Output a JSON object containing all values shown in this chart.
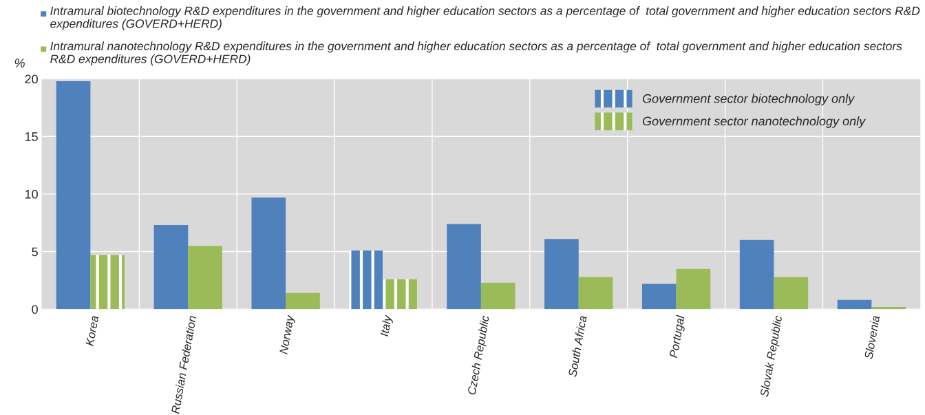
{
  "chart_data": {
    "type": "bar",
    "ylabel": "%",
    "categories": [
      "Korea",
      "Russian Federation",
      "Norway",
      "Italy",
      "Czech Republic",
      "South Africa",
      "Portugal",
      "Slovak Republic",
      "Slovenia"
    ],
    "series": [
      {
        "name": "Intramural biotechnology R&D expenditures in the government and higher education sectors as a percentage of  total government and higher education sectors R&D expenditures (GOVERD+HERD)",
        "color": "#4f81bd",
        "values": [
          19.8,
          7.3,
          9.7,
          null,
          7.4,
          6.1,
          2.2,
          6.0,
          0.8
        ]
      },
      {
        "name": "Intramural nanotechnology R&D expenditures in the government and higher education sectors as a percentage of  total government and higher education sectors R&D expenditures (GOVERD+HERD)",
        "color": "#9bbb59",
        "values": [
          null,
          5.5,
          1.4,
          null,
          2.3,
          2.8,
          3.5,
          2.8,
          0.2
        ]
      },
      {
        "name": "Government sector biotechnology only",
        "color": "#4f81bd",
        "values": [
          null,
          null,
          null,
          5.1,
          null,
          null,
          null,
          null,
          null
        ]
      },
      {
        "name": "Government sector nanotechnology only",
        "color": "#9bbb59",
        "values": [
          4.7,
          null,
          null,
          2.6,
          null,
          null,
          null,
          null,
          null
        ]
      }
    ],
    "ylim": [
      0,
      20
    ],
    "yticks": [
      0,
      5,
      10,
      15,
      20
    ],
    "grid": true,
    "legend": "top"
  }
}
